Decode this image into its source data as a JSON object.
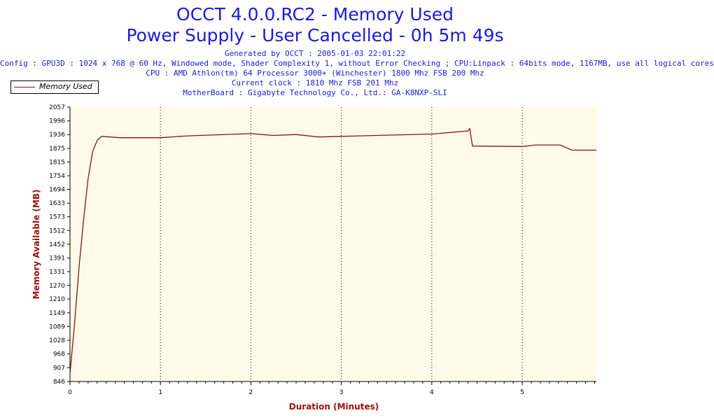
{
  "header": {
    "title": "OCCT 4.0.0.RC2 - Memory Used",
    "subtitle": "Power Supply - User Cancelled - 0h 5m 49s",
    "info_lines": [
      "Generated by OCCT : 2005-01-03 22:01:22",
      "Config : GPU3D : 1024 x 768 @ 60 Hz, Windowed mode, Shader Complexity 1, without Error Checking ; CPU:Linpack : 64bits mode, 1167MB, use all logical cores",
      "CPU : AMD Athlon(tm) 64 Processor 3000+ (Winchester) 1800 Mhz FSB 200 Mhz",
      "Current clock : 1810 Mhz FSB 201 Mhz",
      "MotherBoard : Gigabyte Technology Co., Ltd.: GA-K8NXP-SLI"
    ]
  },
  "colors": {
    "title": "#1a1ad6",
    "axis_title": "#a01010",
    "plot_background": "#fffbe8",
    "series_line": "#8b1010"
  },
  "chart_data": {
    "type": "line",
    "xlabel": "Duration (Minutes)",
    "ylabel": "Memory Available (MB)",
    "xlim": [
      0,
      5.82
    ],
    "ylim": [
      846,
      2057
    ],
    "x_ticks": [
      0,
      1,
      2,
      3,
      4,
      5
    ],
    "y_ticks": [
      846,
      907,
      968,
      1028,
      1089,
      1149,
      1210,
      1270,
      1331,
      1391,
      1452,
      1512,
      1573,
      1633,
      1694,
      1754,
      1815,
      1875,
      1936,
      1996,
      2057
    ],
    "grid": "vertical dotted",
    "legend_position": "top-left",
    "series": [
      {
        "name": "Memory Used",
        "x": [
          0,
          0.05,
          0.1,
          0.15,
          0.2,
          0.25,
          0.3,
          0.35,
          0.55,
          1.0,
          1.3,
          2.0,
          2.25,
          2.5,
          2.75,
          3.0,
          3.5,
          4.0,
          4.2,
          4.4,
          4.42,
          4.45,
          5.0,
          5.15,
          5.42,
          5.55,
          5.82
        ],
        "values": [
          880,
          1100,
          1350,
          1560,
          1740,
          1860,
          1910,
          1928,
          1922,
          1922,
          1930,
          1940,
          1932,
          1936,
          1925,
          1928,
          1933,
          1938,
          1945,
          1952,
          1962,
          1885,
          1883,
          1890,
          1890,
          1867,
          1867
        ]
      }
    ]
  }
}
